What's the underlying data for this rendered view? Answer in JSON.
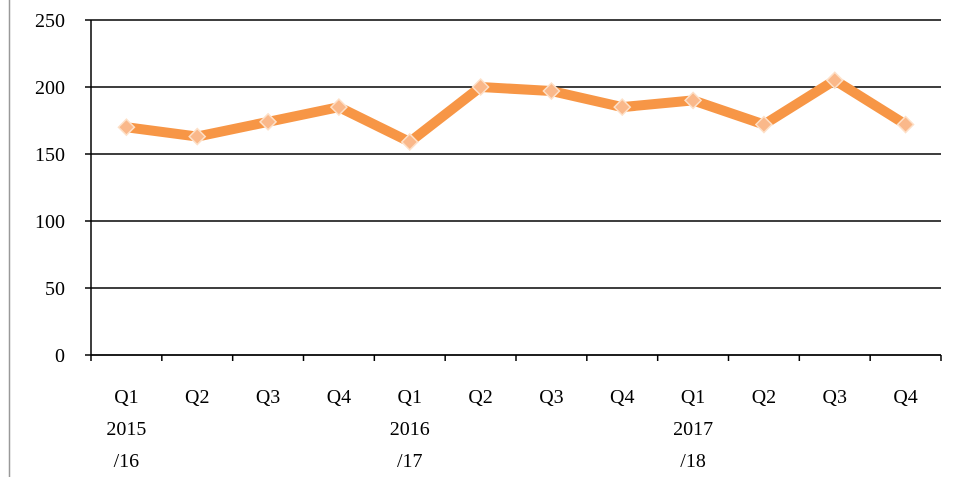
{
  "chart_data": {
    "type": "line",
    "categories": [
      "Q1\n2015\n/16",
      "Q2",
      "Q3",
      "Q4",
      "Q1\n2016\n/17",
      "Q2",
      "Q3",
      "Q4",
      "Q1\n2017\n/18",
      "Q2",
      "Q3",
      "Q4"
    ],
    "series": [
      {
        "name": null,
        "color": "#f79646",
        "values": [
          170,
          163,
          174,
          185,
          159,
          200,
          197,
          185,
          190,
          172,
          205,
          172
        ]
      }
    ],
    "ylim": [
      0,
      250
    ],
    "yticks": [
      0,
      50,
      100,
      150,
      200,
      250
    ],
    "grid": true,
    "legend": false
  }
}
